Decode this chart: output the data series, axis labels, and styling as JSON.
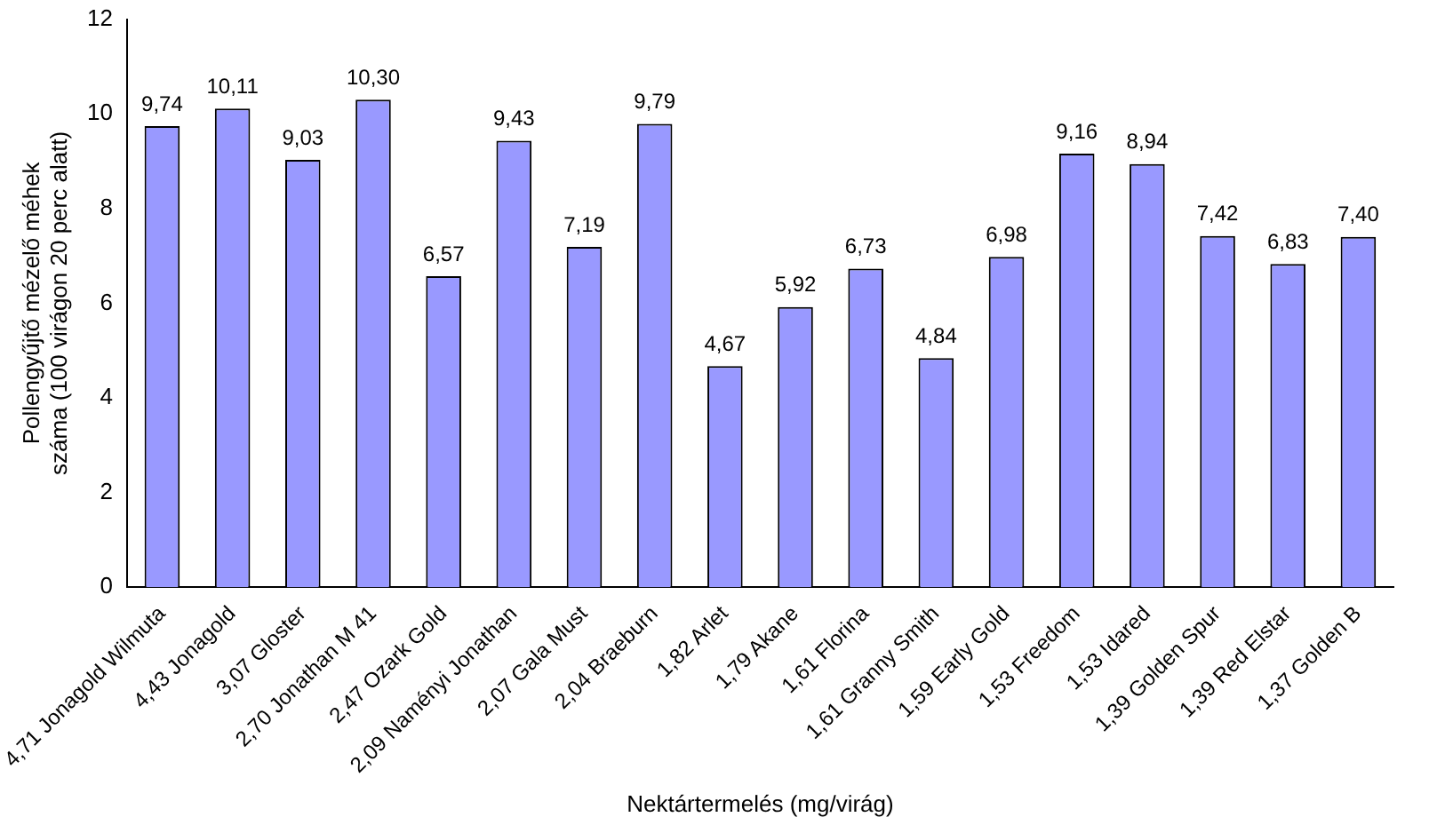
{
  "chart_data": {
    "type": "bar",
    "xlabel": "Nektártermelés (mg/virág)",
    "ylabel": "Pollengyűjtő mézelő méhek\nszáma (100 virágon 20 perc alatt)",
    "categories": [
      "4,71 Jonagold Wilmuta",
      "4,43 Jonagold",
      "3,07 Gloster",
      "2,70 Jonathan M 41",
      "2,47 Ozark Gold",
      "2,09 Naményi Jonathan",
      "2,07 Gala Must",
      "2,04 Braeburn",
      "1,82 Arlet",
      "1,79 Akane",
      "1,61 Florina",
      "1,61 Granny Smith",
      "1,59 Early Gold",
      "1,53 Freedom",
      "1,53 Idared",
      "1,39 Golden Spur",
      "1,39 Red Elstar",
      "1,37 Golden B"
    ],
    "values": [
      9.74,
      10.11,
      9.03,
      10.3,
      6.57,
      9.43,
      7.19,
      9.79,
      4.67,
      5.92,
      6.73,
      4.84,
      6.98,
      9.16,
      8.94,
      7.42,
      6.83,
      7.4
    ],
    "value_labels": [
      "9,74",
      "10,11",
      "9,03",
      "10,30",
      "6,57",
      "9,43",
      "7,19",
      "9,79",
      "4,67",
      "5,92",
      "6,73",
      "4,84",
      "6,98",
      "9,16",
      "8,94",
      "7,42",
      "6,83",
      "7,40"
    ],
    "color": "#9999ff",
    "ylim": [
      0,
      12
    ],
    "yticks": [
      0,
      2,
      4,
      6,
      8,
      10,
      12
    ],
    "grid": false,
    "legend": false
  }
}
